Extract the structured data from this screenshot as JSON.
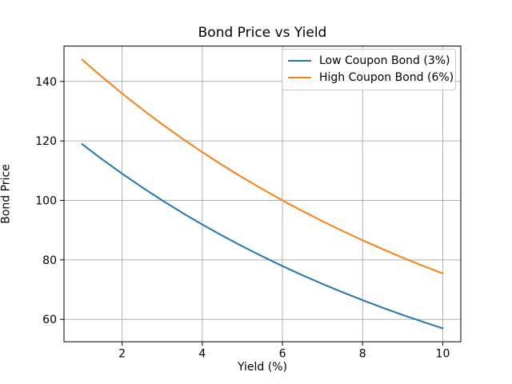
{
  "chart_data": {
    "type": "line",
    "title": "Bond Price vs Yield",
    "xlabel": "Yield (%)",
    "ylabel": "Bond Price",
    "x": [
      1,
      1.5,
      2,
      2.5,
      3,
      3.5,
      4,
      4.5,
      5,
      5.5,
      6,
      6.5,
      7,
      7.5,
      8,
      8.5,
      9,
      9.5,
      10
    ],
    "series": [
      {
        "name": "Low Coupon Bond (3%)",
        "color": "#1f77b4",
        "values": [
          118.94,
          113.83,
          108.98,
          104.38,
          100.0,
          95.84,
          91.89,
          88.13,
          84.56,
          81.16,
          77.92,
          74.84,
          71.91,
          69.11,
          66.45,
          63.91,
          61.49,
          59.19,
          56.99
        ]
      },
      {
        "name": "High Coupon Bond (6%)",
        "color": "#ff7f0e",
        "values": [
          147.36,
          141.5,
          135.93,
          130.63,
          125.59,
          120.79,
          116.22,
          111.87,
          107.72,
          103.78,
          100.0,
          96.41,
          92.98,
          89.7,
          86.58,
          83.6,
          80.75,
          78.02,
          75.42
        ]
      }
    ],
    "xlim": [
      0.55,
      10.45
    ],
    "ylim": [
      52.47,
      151.88
    ],
    "x_ticks": [
      2,
      4,
      6,
      8,
      10
    ],
    "y_ticks": [
      60,
      80,
      100,
      120,
      140
    ],
    "grid": true,
    "grid_color": "#b0b0b0",
    "axis_color": "#000000",
    "tick_label_color": "#000000",
    "legend": {
      "position": "upper right",
      "entries": [
        "Low Coupon Bond (3%)",
        "High Coupon Bond (6%)"
      ]
    }
  }
}
